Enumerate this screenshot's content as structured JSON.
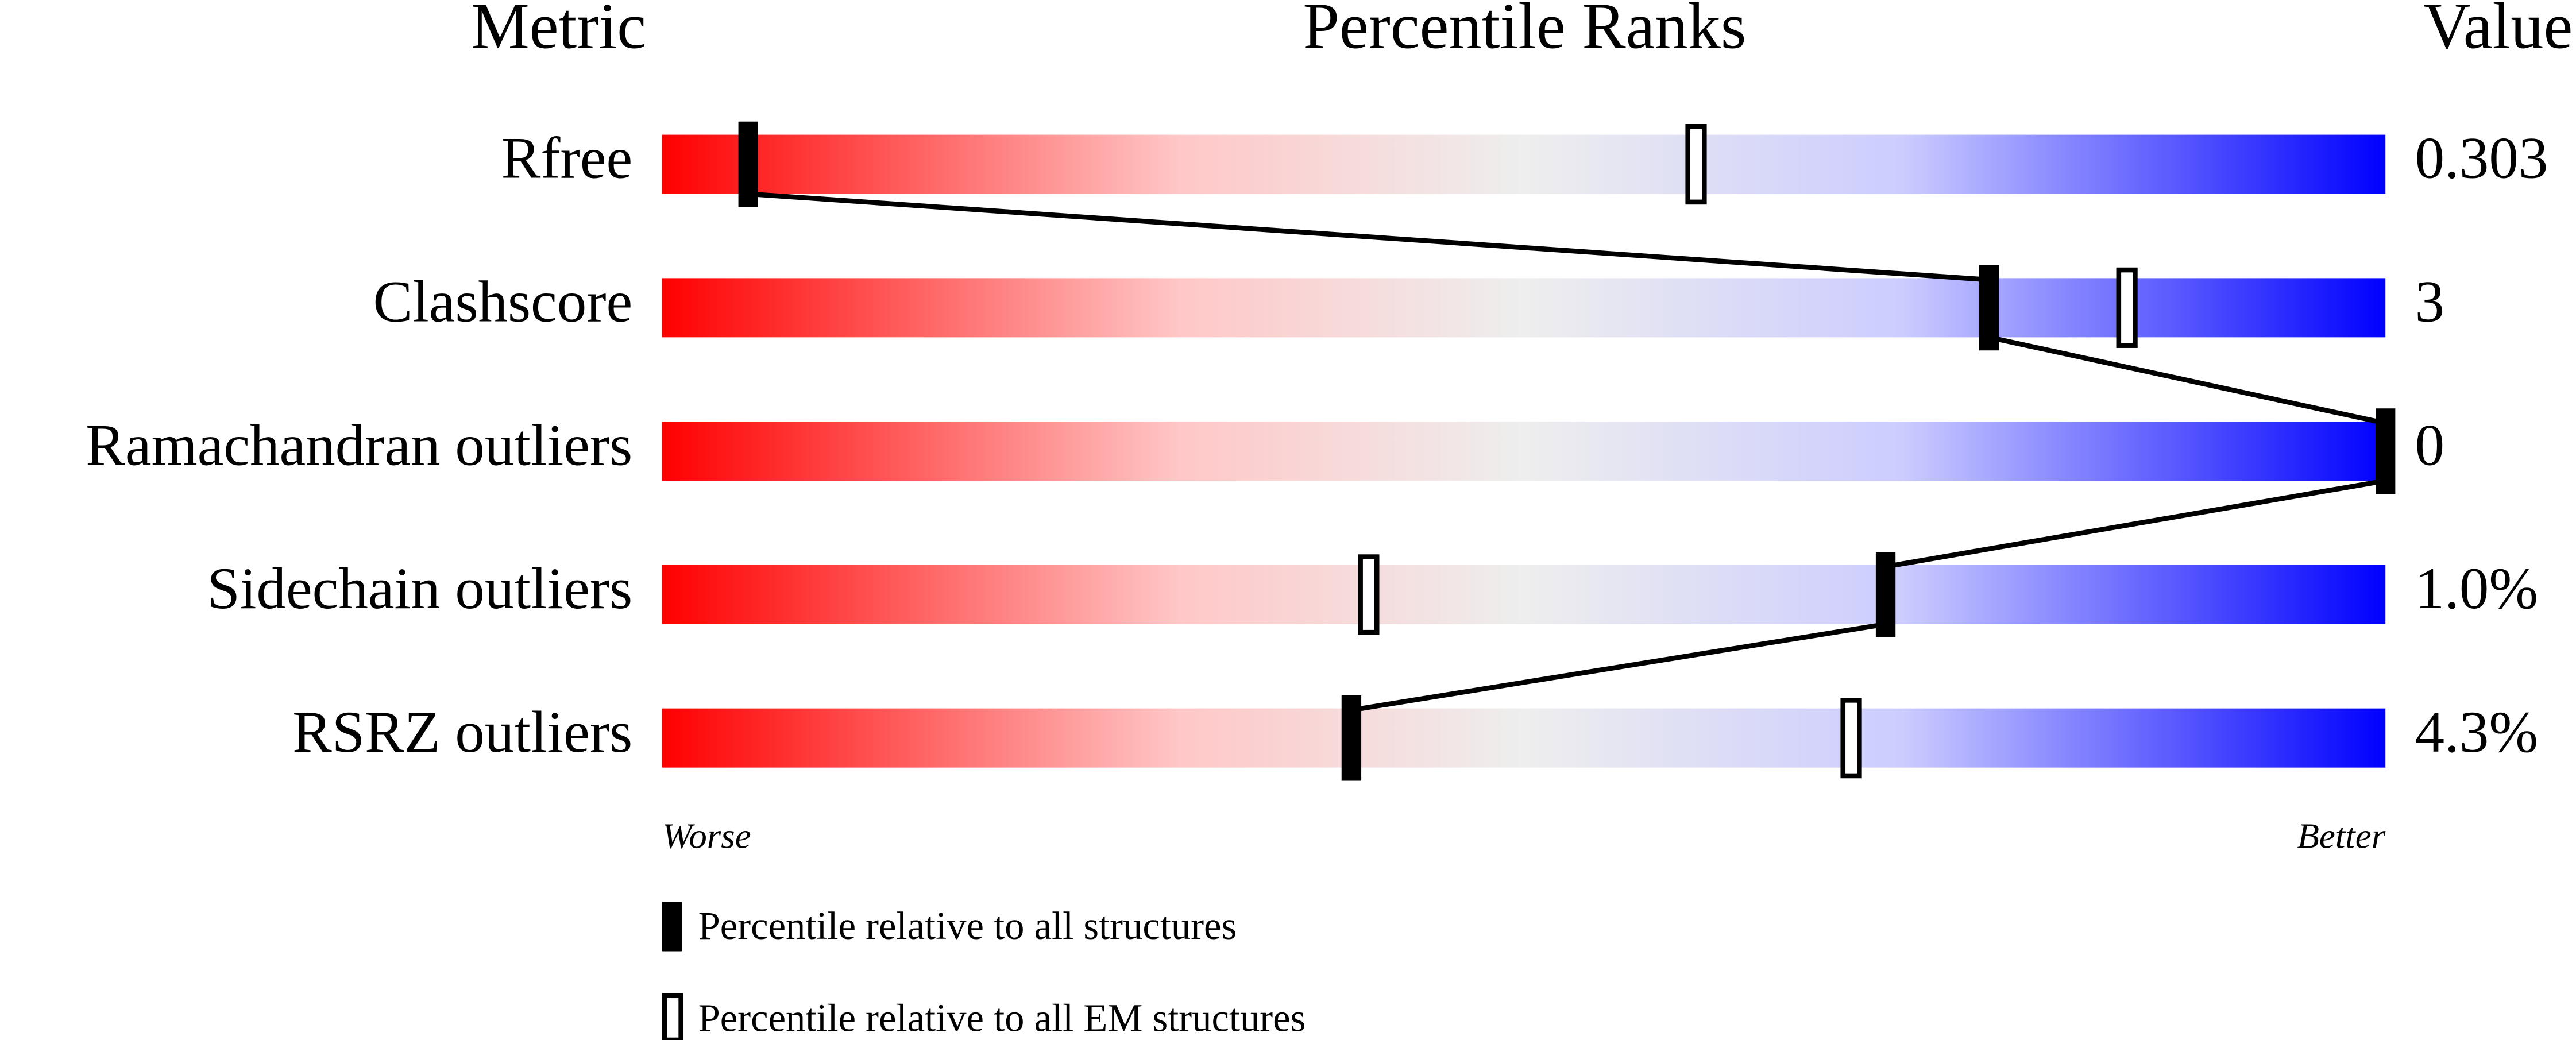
{
  "chart_data": {
    "type": "percentile-slider",
    "headers": [
      "Metric",
      "Percentile Ranks",
      "Value"
    ],
    "categories": [
      "Rfree",
      "Clashscore",
      "Ramachandran outliers",
      "Sidechain outliers",
      "RSRZ outliers"
    ],
    "value_column": [
      "0.303",
      "3",
      "0",
      "1.0%",
      "4.3%"
    ],
    "series": [
      {
        "name": "Percentile relative to all structures",
        "color": "#000000",
        "values": [
          5,
          77,
          100,
          71,
          40
        ]
      },
      {
        "name": "Percentile relative to all EM structures",
        "color": "#ffffff",
        "values": [
          60,
          85,
          null,
          41,
          69
        ]
      }
    ],
    "xlim": [
      0,
      100
    ],
    "scale_ends": [
      "Worse",
      "Better"
    ],
    "gradient": [
      "#ff0000",
      "#eeeeee",
      "#0000ff"
    ]
  }
}
